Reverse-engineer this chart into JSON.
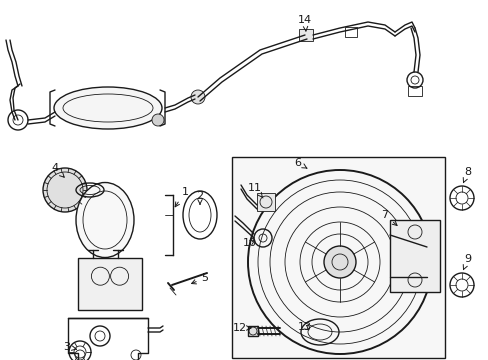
{
  "bg_color": "#ffffff",
  "line_color": "#1a1a1a",
  "gray_fill": "#f0f0f0",
  "light_gray": "#e8e8e8",
  "figsize": [
    4.89,
    3.6
  ],
  "dpi": 100,
  "font_size": 8,
  "arrow_lw": 0.7,
  "lw_thin": 0.6,
  "lw_med": 1.0,
  "lw_thick": 1.4,
  "layout": {
    "tube_region": [
      0.0,
      0.0,
      1.0,
      0.42
    ],
    "cylinder_region": [
      0.0,
      0.42,
      0.42,
      1.0
    ],
    "booster_region": [
      0.38,
      0.35,
      1.0,
      1.0
    ]
  }
}
